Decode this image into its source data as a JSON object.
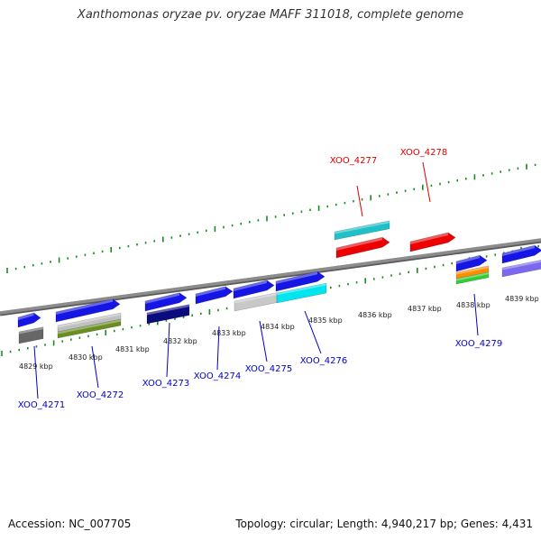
{
  "title": "Xanthomonas oryzae pv. oryzae MAFF 311018, complete genome",
  "footer": {
    "accession": "Accession: NC_007705",
    "topology": "Topology: circular; Length: 4,940,217 bp; Genes: 4,431"
  },
  "colors": {
    "forward_label": "#0000cc",
    "reverse_label": "#dd0000",
    "tick_green": "#1a8a1a",
    "backbone": "#8c8c8c"
  },
  "ticks": [
    {
      "label": "4829 kbp"
    },
    {
      "label": "4830 kbp"
    },
    {
      "label": "4831 kbp"
    },
    {
      "label": "4832 kbp"
    },
    {
      "label": "4833 kbp"
    },
    {
      "label": "4834 kbp"
    },
    {
      "label": "4835 kbp"
    },
    {
      "label": "4836 kbp"
    },
    {
      "label": "4837 kbp"
    },
    {
      "label": "4838 kbp"
    },
    {
      "label": "4839 kbp"
    }
  ],
  "genes": [
    {
      "id": "XOO_4271",
      "strand": "forward",
      "color": "#1515e6",
      "sub": [
        "#666666"
      ]
    },
    {
      "id": "XOO_4272",
      "strand": "forward",
      "color": "#1515e6",
      "sub": [
        "#c0c0c0",
        "#6b8e23"
      ]
    },
    {
      "id": "XOO_4273",
      "strand": "forward",
      "color": "#1515e6",
      "sub": [
        "#0b0b80"
      ]
    },
    {
      "id": "XOO_4274",
      "strand": "forward",
      "color": "#1515e6",
      "sub": []
    },
    {
      "id": "XOO_4275",
      "strand": "forward",
      "color": "#1515e6",
      "sub": [
        "#c8c8c8"
      ]
    },
    {
      "id": "XOO_4276",
      "strand": "forward",
      "color": "#1515e6",
      "sub": [
        "#00e5ee"
      ]
    },
    {
      "id": "XOO_4277",
      "strand": "reverse",
      "color": "#ee0000",
      "sub": [
        "#20c0c8"
      ]
    },
    {
      "id": "XOO_4278",
      "strand": "reverse",
      "color": "#ee0000",
      "sub": []
    },
    {
      "id": "XOO_4279",
      "strand": "forward",
      "color": "#1515e6",
      "sub": [
        "#ff8c00",
        "#33cc33"
      ]
    },
    {
      "id": "",
      "strand": "forward",
      "color": "#1515e6",
      "sub": [
        "#7b68ee"
      ]
    }
  ]
}
